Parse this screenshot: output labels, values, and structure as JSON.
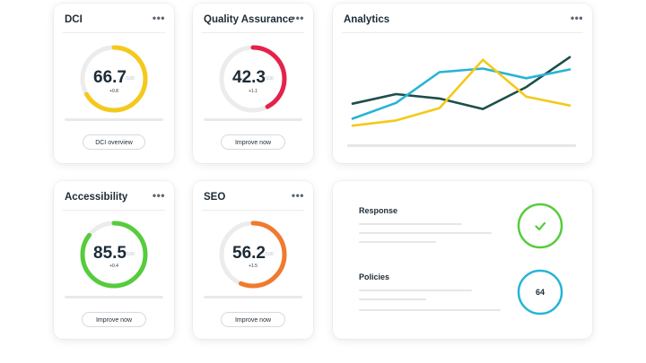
{
  "cards": {
    "dci": {
      "title": "DCI",
      "menu": "•••",
      "value": "66.7",
      "max": "/100",
      "delta": "+0.8",
      "fraction": 0.667,
      "color": "#f4c91b",
      "button": "DCI overview"
    },
    "qa": {
      "title": "Quality Assurance",
      "menu": "•••",
      "value": "42.3",
      "max": "/100",
      "delta": "+1.1",
      "fraction": 0.423,
      "color": "#e5224a",
      "button": "Improve now"
    },
    "accessibility": {
      "title": "Accessibility",
      "menu": "•••",
      "value": "85.5",
      "max": "/100",
      "delta": "+0.4",
      "fraction": 0.855,
      "color": "#56cc3c",
      "button": "Improve now"
    },
    "seo": {
      "title": "SEO",
      "menu": "•••",
      "value": "56.2",
      "max": "/100",
      "delta": "+1.5",
      "fraction": 0.562,
      "color": "#f07a2d",
      "button": "Improve now"
    }
  },
  "analytics": {
    "title": "Analytics",
    "menu": "•••",
    "chart_data": {
      "type": "line",
      "x": [
        0,
        1,
        2,
        3,
        4,
        5
      ],
      "ylim": [
        0,
        100
      ],
      "grid": false,
      "series": [
        {
          "color": "#1c4f4a",
          "values": [
            37,
            48,
            43,
            31,
            56,
            90
          ]
        },
        {
          "color": "#27b4d6",
          "values": [
            20,
            38,
            73,
            77,
            66,
            76
          ]
        },
        {
          "color": "#f4c91b",
          "values": [
            12,
            18,
            32,
            87,
            45,
            35
          ]
        }
      ]
    }
  },
  "status": {
    "response": {
      "label": "Response",
      "icon": "check-icon",
      "color": "#56cc3c",
      "symbol": "✓"
    },
    "policies": {
      "label": "Policies",
      "value": "64",
      "color": "#27b4d6"
    }
  }
}
